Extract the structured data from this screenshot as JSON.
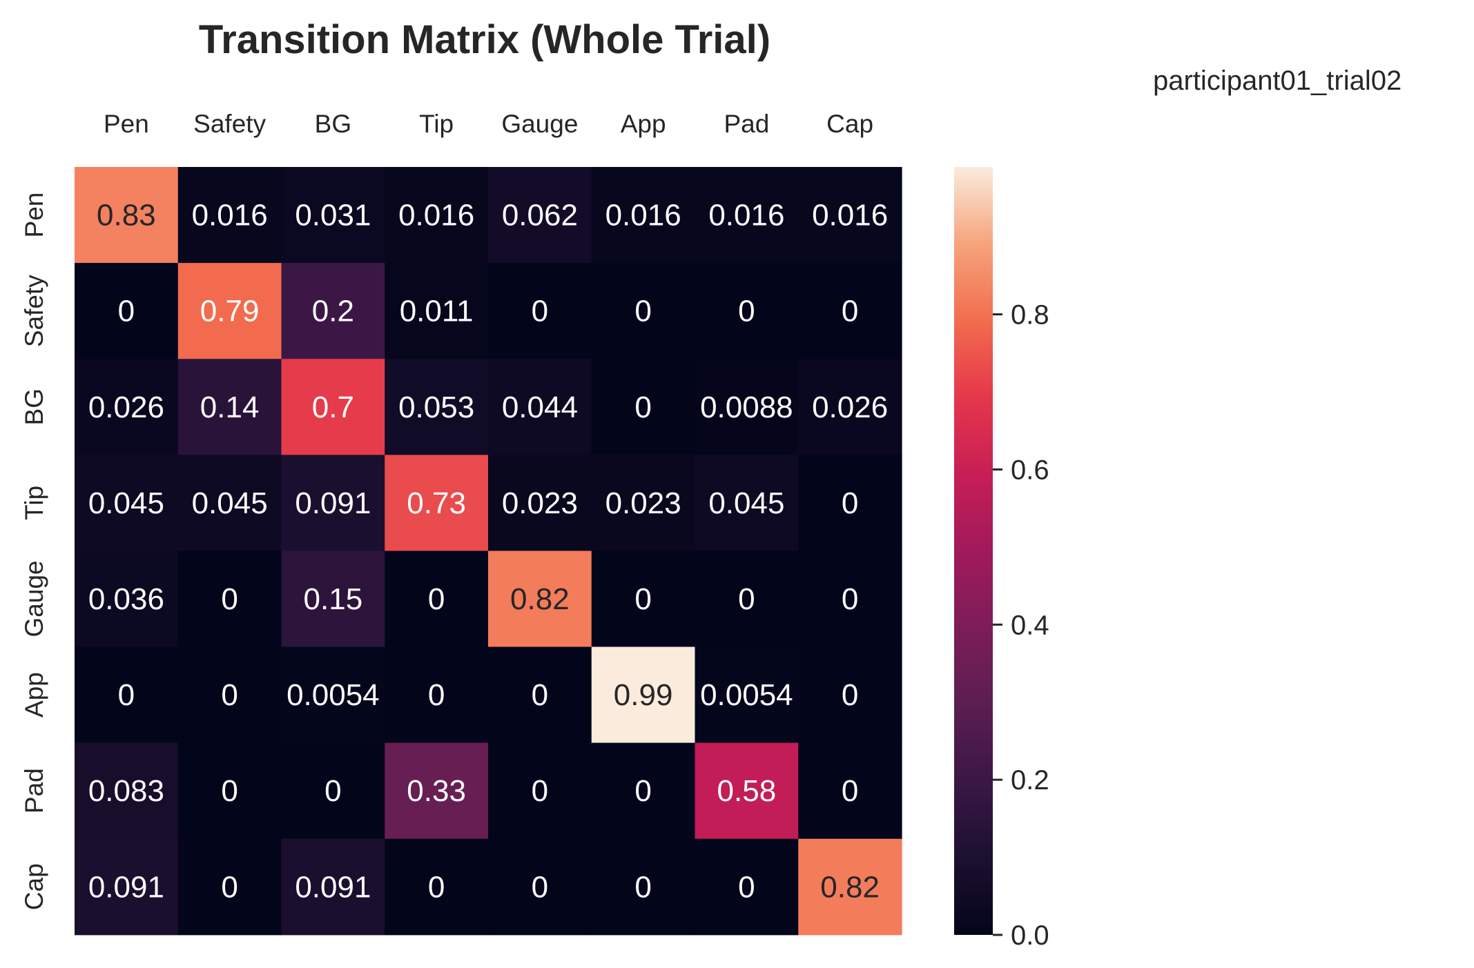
{
  "chart_data": {
    "type": "heatmap",
    "title": "Transition Matrix (Whole Trial)",
    "subtitle": "participant01_trial02",
    "x_labels": [
      "Pen",
      "Safety",
      "BG",
      "Tip",
      "Gauge",
      "App",
      "Pad",
      "Cap"
    ],
    "y_labels": [
      "Pen",
      "Safety",
      "BG",
      "Tip",
      "Gauge",
      "App",
      "Pad",
      "Cap"
    ],
    "values": [
      [
        0.83,
        0.016,
        0.031,
        0.016,
        0.062,
        0.016,
        0.016,
        0.016
      ],
      [
        0,
        0.79,
        0.2,
        0.011,
        0,
        0,
        0,
        0
      ],
      [
        0.026,
        0.14,
        0.7,
        0.053,
        0.044,
        0,
        0.0088,
        0.026
      ],
      [
        0.045,
        0.045,
        0.091,
        0.73,
        0.023,
        0.023,
        0.045,
        0
      ],
      [
        0.036,
        0,
        0.15,
        0,
        0.82,
        0,
        0,
        0
      ],
      [
        0,
        0,
        0.0054,
        0,
        0,
        0.99,
        0.0054,
        0
      ],
      [
        0.083,
        0,
        0,
        0.33,
        0,
        0,
        0.58,
        0
      ],
      [
        0.091,
        0,
        0.091,
        0,
        0,
        0,
        0,
        0.82
      ]
    ],
    "value_labels": [
      [
        "0.83",
        "0.016",
        "0.031",
        "0.016",
        "0.062",
        "0.016",
        "0.016",
        "0.016"
      ],
      [
        "0",
        "0.79",
        "0.2",
        "0.011",
        "0",
        "0",
        "0",
        "0"
      ],
      [
        "0.026",
        "0.14",
        "0.7",
        "0.053",
        "0.044",
        "0",
        "0.0088",
        "0.026"
      ],
      [
        "0.045",
        "0.045",
        "0.091",
        "0.73",
        "0.023",
        "0.023",
        "0.045",
        "0"
      ],
      [
        "0.036",
        "0",
        "0.15",
        "0",
        "0.82",
        "0",
        "0",
        "0"
      ],
      [
        "0",
        "0",
        "0.0054",
        "0",
        "0",
        "0.99",
        "0.0054",
        "0"
      ],
      [
        "0.083",
        "0",
        "0",
        "0.33",
        "0",
        "0",
        "0.58",
        "0"
      ],
      [
        "0.091",
        "0",
        "0.091",
        "0",
        "0",
        "0",
        "0",
        "0.82"
      ]
    ],
    "colormap": "rocket",
    "color_range": [
      0,
      0.99
    ],
    "colorbar_ticks": [
      0.0,
      0.2,
      0.4,
      0.6,
      0.8
    ],
    "colorbar_tick_labels": [
      "0.0",
      "0.2",
      "0.4",
      "0.6",
      "0.8"
    ],
    "x_axis_position": "top",
    "grid": false
  }
}
